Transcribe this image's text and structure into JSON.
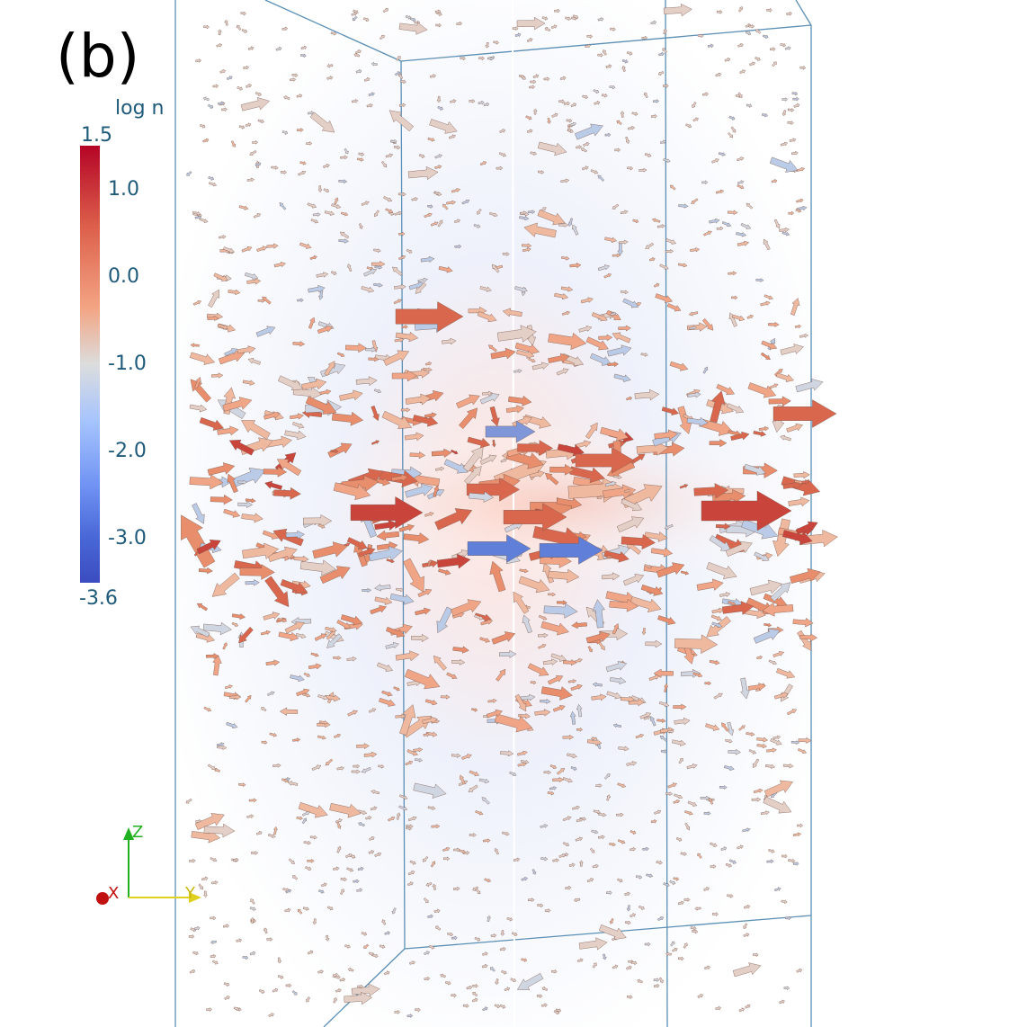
{
  "panel_label": "(b)",
  "colorbar": {
    "title": "log n",
    "max": "1.5",
    "min": "-3.6",
    "ticks": [
      "1.0",
      "0.0",
      "-1.0",
      "-2.0",
      "-3.0"
    ],
    "colormap": [
      "#3b4cc0",
      "#6f92f3",
      "#a6c4fe",
      "#dcdddd",
      "#f3a483",
      "#dc5d4a",
      "#b40426"
    ]
  },
  "orientation_axes": {
    "z": "Z",
    "x": "X",
    "y": "Y"
  },
  "box_color": "#5b8fb5"
}
